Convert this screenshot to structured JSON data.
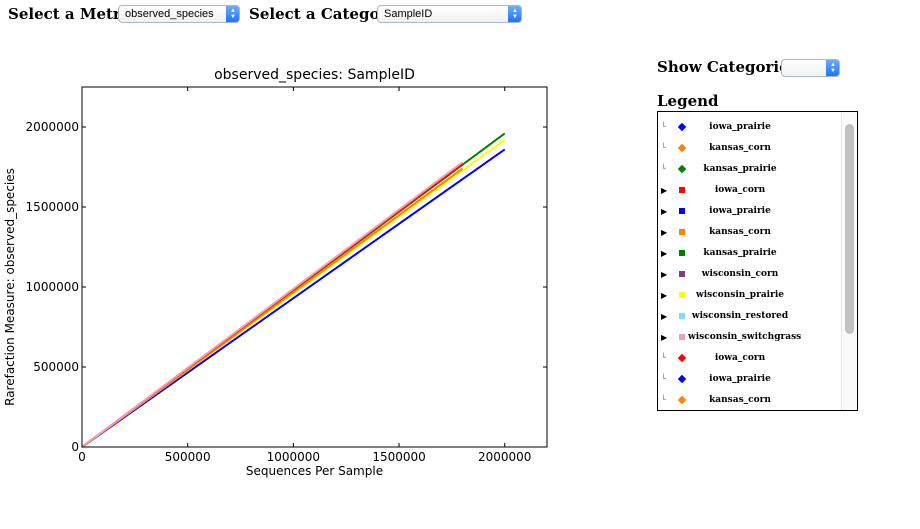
{
  "controls": {
    "metric_label": "Select a Metric:",
    "metric_value": "observed_species",
    "category_label": "Select a Category:",
    "category_value": "SampleID",
    "show_categories_label": "Show Categories:",
    "show_categories_value": "",
    "legend_title": "Legend"
  },
  "legend": {
    "items": [
      {
        "name": "iowa_prairie",
        "color": "#0000ff",
        "marker": "diamond",
        "expander": "leaf"
      },
      {
        "name": "kansas_corn",
        "color": "#ff7f00",
        "marker": "diamond",
        "expander": "leaf"
      },
      {
        "name": "kansas_prairie",
        "color": "#008000",
        "marker": "diamond",
        "expander": "leaf"
      },
      {
        "name": "iowa_corn",
        "color": "#ff0000",
        "marker": "square",
        "expander": "arrow"
      },
      {
        "name": "iowa_prairie",
        "color": "#0000ff",
        "marker": "square",
        "expander": "arrow"
      },
      {
        "name": "kansas_corn",
        "color": "#ff7f00",
        "marker": "square",
        "expander": "arrow"
      },
      {
        "name": "kansas_prairie",
        "color": "#008000",
        "marker": "square",
        "expander": "arrow"
      },
      {
        "name": "wisconsin_corn",
        "color": "#7f3f7f",
        "marker": "square",
        "expander": "arrow"
      },
      {
        "name": "wisconsin_prairie",
        "color": "#ffff00",
        "marker": "square",
        "expander": "arrow"
      },
      {
        "name": "wisconsin_restored",
        "color": "#7fdfef",
        "marker": "square",
        "expander": "arrow"
      },
      {
        "name": "wisconsin_switchgrass",
        "color": "#f0a0b0",
        "marker": "square",
        "expander": "arrow"
      },
      {
        "name": "iowa_corn",
        "color": "#ff0000",
        "marker": "diamond",
        "expander": "leaf"
      },
      {
        "name": "iowa_prairie",
        "color": "#0000ff",
        "marker": "diamond",
        "expander": "leaf"
      },
      {
        "name": "kansas_corn",
        "color": "#ff7f00",
        "marker": "diamond",
        "expander": "leaf"
      }
    ]
  },
  "chart_data": {
    "type": "line",
    "title": "observed_species: SampleID",
    "xlabel": "Sequences Per Sample",
    "ylabel": "Rarefaction Measure: observed_species",
    "xlim": [
      0,
      2200000
    ],
    "ylim": [
      0,
      2250000
    ],
    "xticks": [
      0,
      500000,
      1000000,
      1500000,
      2000000
    ],
    "xtick_labels": [
      "0",
      "500000",
      "1000000",
      "1500000",
      "2000000"
    ],
    "yticks": [
      0,
      500000,
      1000000,
      1500000,
      2000000
    ],
    "ytick_labels": [
      "0",
      "500000",
      "1000000",
      "1500000",
      "2000000"
    ],
    "grid": false,
    "series": [
      {
        "color": "#0000ff",
        "x": [
          0,
          2000000
        ],
        "y": [
          0,
          1860000
        ]
      },
      {
        "color": "#ffff00",
        "x": [
          0,
          2000000
        ],
        "y": [
          0,
          1920000
        ]
      },
      {
        "color": "#008000",
        "x": [
          0,
          2000000
        ],
        "y": [
          0,
          1960000
        ]
      },
      {
        "color": "#ff7f00",
        "x": [
          0,
          1800000
        ],
        "y": [
          0,
          1740000
        ]
      },
      {
        "color": "#ff0000",
        "x": [
          0,
          1800000
        ],
        "y": [
          0,
          1770000
        ]
      },
      {
        "color": "#f0a0b0",
        "x": [
          0,
          1800000
        ],
        "y": [
          0,
          1780000
        ]
      }
    ]
  }
}
